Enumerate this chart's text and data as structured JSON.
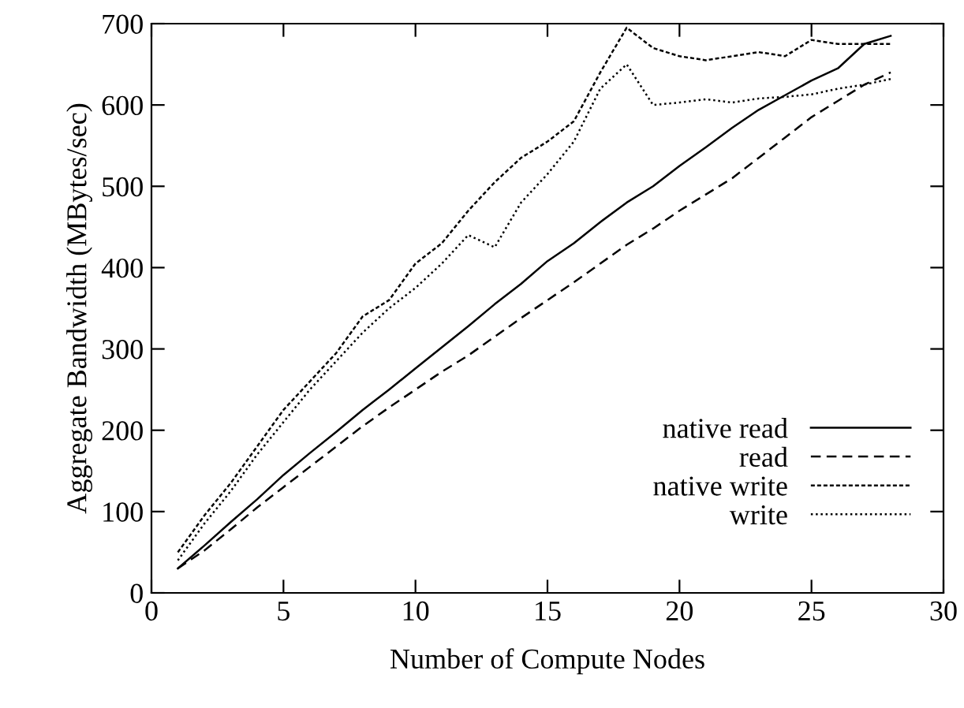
{
  "chart_data": {
    "type": "line",
    "xlabel": "Number of Compute Nodes",
    "ylabel": "Aggregate Bandwidth (MBytes/sec)",
    "x": [
      1,
      2,
      3,
      4,
      5,
      6,
      7,
      8,
      9,
      10,
      11,
      12,
      13,
      14,
      15,
      16,
      17,
      18,
      19,
      20,
      21,
      22,
      23,
      24,
      25,
      26,
      27,
      28
    ],
    "series": [
      {
        "name": "native read",
        "color": "#000000",
        "line_style": "solid",
        "values": [
          30,
          58,
          87,
          115,
          145,
          172,
          198,
          225,
          250,
          276,
          302,
          328,
          355,
          380,
          408,
          430,
          456,
          480,
          500,
          525,
          548,
          572,
          594,
          612,
          630,
          645,
          675,
          685
        ]
      },
      {
        "name": "read",
        "color": "#000000",
        "line_style": "dashed",
        "values": [
          30,
          52,
          78,
          105,
          130,
          155,
          180,
          205,
          228,
          250,
          272,
          292,
          315,
          338,
          360,
          382,
          405,
          428,
          448,
          470,
          490,
          510,
          535,
          560,
          585,
          605,
          625,
          640
        ]
      },
      {
        "name": "native write",
        "color": "#000000",
        "line_style": "dashed",
        "values": [
          50,
          95,
          135,
          180,
          225,
          260,
          295,
          340,
          360,
          405,
          430,
          470,
          505,
          535,
          555,
          580,
          640,
          695,
          670,
          660,
          655,
          660,
          665,
          660,
          680,
          675,
          675,
          675
        ]
      },
      {
        "name": "write",
        "color": "#000000",
        "line_style": "dotted",
        "values": [
          40,
          85,
          125,
          170,
          210,
          250,
          285,
          320,
          350,
          375,
          405,
          440,
          425,
          480,
          515,
          555,
          620,
          650,
          600,
          603,
          607,
          603,
          608,
          610,
          613,
          620,
          625,
          632
        ]
      }
    ],
    "xlim": [
      0,
      30
    ],
    "xticks": [
      0,
      5,
      10,
      15,
      20,
      25,
      30
    ],
    "ylim": [
      0,
      700
    ],
    "yticks": [
      0,
      100,
      200,
      300,
      400,
      500,
      600,
      700
    ],
    "grid": false,
    "legend": "bottom right",
    "marker": "none"
  }
}
